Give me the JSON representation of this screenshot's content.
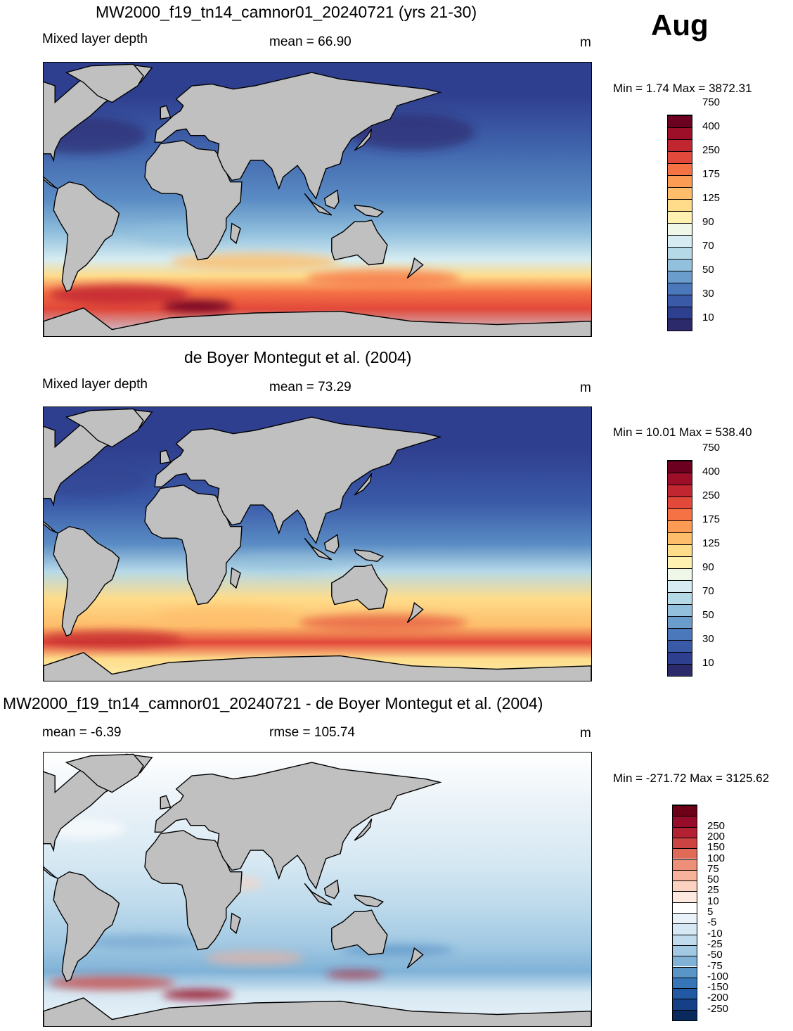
{
  "month": "Aug",
  "panels": [
    {
      "title": "MW2000_f19_tn14_camnor01_20240721 (yrs 21-30)",
      "left_text": "Mixed layer depth",
      "center_text": "mean =  66.90",
      "unit": "m",
      "minmax": "Min =   1.74 Max = 3872.31",
      "colorbar": {
        "colors": [
          "#2d2a6b",
          "#2f3f8f",
          "#3a5aa8",
          "#4a78bb",
          "#6a9ccc",
          "#92c0dd",
          "#b6d9e8",
          "#d6ecf2",
          "#eef7e8",
          "#fff1b0",
          "#fedc8a",
          "#fdbd6b",
          "#fb9b54",
          "#f57245",
          "#e2493a",
          "#c22731",
          "#9d0f29",
          "#6b0021"
        ],
        "labels": [
          "10",
          "30",
          "50",
          "70",
          "90",
          "125",
          "175",
          "250",
          "400",
          "750"
        ]
      },
      "map_style": "model"
    },
    {
      "title": "de Boyer Montegut et al. (2004)",
      "left_text": "Mixed layer depth",
      "center_text": "mean =  73.29",
      "unit": "m",
      "minmax": "Min =  10.01 Max = 538.40",
      "colorbar": {
        "colors": [
          "#2d2a6b",
          "#2f3f8f",
          "#3a5aa8",
          "#4a78bb",
          "#6a9ccc",
          "#92c0dd",
          "#b6d9e8",
          "#d6ecf2",
          "#eef7e8",
          "#fff1b0",
          "#fedc8a",
          "#fdbd6b",
          "#fb9b54",
          "#f57245",
          "#e2493a",
          "#c22731",
          "#9d0f29",
          "#6b0021"
        ],
        "labels": [
          "10",
          "30",
          "50",
          "70",
          "90",
          "125",
          "175",
          "250",
          "400",
          "750"
        ]
      },
      "map_style": "obs"
    },
    {
      "title": "MW2000_f19_tn14_camnor01_20240721 - de Boyer Montegut et al. (2004)",
      "left_text": "mean =  -6.39",
      "center_text": "rmse = 105.74",
      "unit": "m",
      "minmax": "Min = -271.72 Max = 3125.62",
      "colorbar": {
        "colors": [
          "#0a2a5e",
          "#153f86",
          "#2159a3",
          "#3575b8",
          "#5a95c8",
          "#80b2d7",
          "#a2c9e3",
          "#bfdbec",
          "#d6e8f3",
          "#e9f2f8",
          "#ffffff",
          "#fde9df",
          "#fbd2bf",
          "#f6b29a",
          "#ee8f78",
          "#e06a58",
          "#cc4442",
          "#b22232",
          "#950d28",
          "#6b0016"
        ],
        "labels": [
          "-250",
          "-200",
          "-150",
          "-100",
          "-75",
          "-50",
          "-25",
          "-10",
          "-5",
          "5",
          "10",
          "25",
          "50",
          "75",
          "100",
          "150",
          "200",
          "250"
        ]
      },
      "map_style": "diff"
    }
  ]
}
